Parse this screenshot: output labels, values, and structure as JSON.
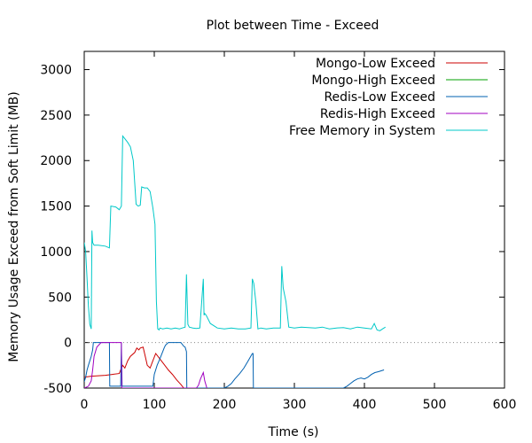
{
  "chart_data": {
    "type": "line",
    "title": "Plot between Time - Exceed",
    "xlabel": "Time (s)",
    "ylabel": "Memory Usage Exceed from Soft Limit (MB)",
    "xlim": [
      0,
      600
    ],
    "ylim": [
      -500,
      3200
    ],
    "xticks": [
      0,
      100,
      200,
      300,
      400,
      500,
      600
    ],
    "yticks": [
      -500,
      0,
      500,
      1000,
      1500,
      2000,
      2500,
      3000
    ],
    "grid": false,
    "zero_line": true,
    "legend_position": "top-right",
    "series": [
      {
        "name": "Mongo-Low Exceed",
        "color": "#cc0000",
        "x": [
          0,
          10,
          20,
          30,
          40,
          50,
          52,
          55,
          58,
          62,
          66,
          72,
          75,
          78,
          80,
          84,
          88,
          90,
          94,
          98,
          102,
          108,
          114,
          120,
          126,
          132,
          138,
          142
        ],
        "y": [
          -380,
          -370,
          -365,
          -360,
          -350,
          -340,
          -300,
          -250,
          -280,
          -200,
          -150,
          -110,
          -60,
          -80,
          -60,
          -50,
          -180,
          -250,
          -280,
          -200,
          -120,
          -180,
          -240,
          -300,
          -350,
          -410,
          -460,
          -500
        ]
      },
      {
        "name": "Mongo-High Exceed",
        "color": "#00a000",
        "x": [],
        "y": []
      },
      {
        "name": "Redis-Low Exceed",
        "color": "#0060b0",
        "x": [
          0,
          2,
          4,
          6,
          8,
          10,
          12,
          13,
          14,
          20,
          30,
          36,
          36.5,
          37,
          45,
          52,
          53,
          54,
          60,
          70,
          80,
          90,
          98,
          100,
          104,
          108,
          112,
          114,
          116,
          120,
          130,
          138,
          142,
          144,
          146,
          146.5,
          147,
          200,
          205,
          210,
          215,
          222,
          228,
          234,
          240,
          241,
          241.5,
          370,
          375,
          380,
          385,
          390,
          395,
          400,
          405,
          410,
          415,
          420,
          428
        ],
        "y": [
          -430,
          -380,
          -300,
          -250,
          -200,
          -150,
          -80,
          0,
          0,
          0,
          0,
          0,
          -480,
          -480,
          -480,
          -480,
          0,
          -480,
          -480,
          -480,
          -480,
          -480,
          -480,
          -350,
          -250,
          -180,
          -100,
          -60,
          -30,
          0,
          0,
          0,
          -40,
          -50,
          -100,
          -500,
          -500,
          -500,
          -480,
          -450,
          -400,
          -340,
          -280,
          -200,
          -120,
          -120,
          -500,
          -500,
          -480,
          -450,
          -420,
          -400,
          -390,
          -400,
          -380,
          -350,
          -330,
          -320,
          -300
        ]
      },
      {
        "name": "Redis-High Exceed",
        "color": "#a000c0",
        "x": [
          0,
          6,
          10,
          12,
          14,
          18,
          24,
          30,
          40,
          50,
          53,
          53.5,
          160,
          163,
          166,
          170,
          172,
          175
        ],
        "y": [
          -500,
          -480,
          -420,
          -300,
          -150,
          -50,
          0,
          0,
          0,
          0,
          0,
          -500,
          -500,
          -470,
          -400,
          -330,
          -420,
          -500
        ]
      },
      {
        "name": "Free Memory in System",
        "color": "#00c8c8",
        "x": [
          0,
          2,
          4,
          6,
          8,
          10,
          11,
          12,
          14,
          20,
          30,
          36,
          38,
          45,
          50,
          53,
          55,
          58,
          62,
          66,
          70,
          74,
          77,
          80,
          82,
          86,
          90,
          94,
          98,
          101,
          103,
          105,
          107,
          108,
          112,
          118,
          124,
          130,
          136,
          140,
          144,
          146,
          148,
          150,
          155,
          160,
          165,
          170,
          171,
          172,
          174,
          180,
          190,
          200,
          210,
          220,
          230,
          238,
          240,
          242,
          245,
          248,
          252,
          260,
          270,
          280,
          282,
          284,
          288,
          292,
          300,
          310,
          320,
          330,
          340,
          350,
          360,
          370,
          380,
          390,
          400,
          410,
          414,
          418,
          422,
          426,
          430
        ],
        "y": [
          1100,
          1000,
          700,
          400,
          200,
          150,
          1230,
          1100,
          1070,
          1070,
          1060,
          1040,
          1500,
          1490,
          1460,
          1500,
          2270,
          2240,
          2200,
          2150,
          2000,
          1520,
          1500,
          1510,
          1710,
          1700,
          1700,
          1660,
          1480,
          1300,
          450,
          150,
          140,
          160,
          150,
          160,
          150,
          160,
          150,
          160,
          170,
          750,
          200,
          170,
          160,
          155,
          160,
          700,
          300,
          320,
          300,
          210,
          160,
          150,
          160,
          150,
          150,
          160,
          700,
          650,
          450,
          150,
          160,
          150,
          160,
          160,
          840,
          600,
          450,
          170,
          160,
          170,
          165,
          160,
          170,
          150,
          160,
          165,
          150,
          170,
          160,
          150,
          210,
          140,
          130,
          150,
          170
        ]
      }
    ]
  }
}
